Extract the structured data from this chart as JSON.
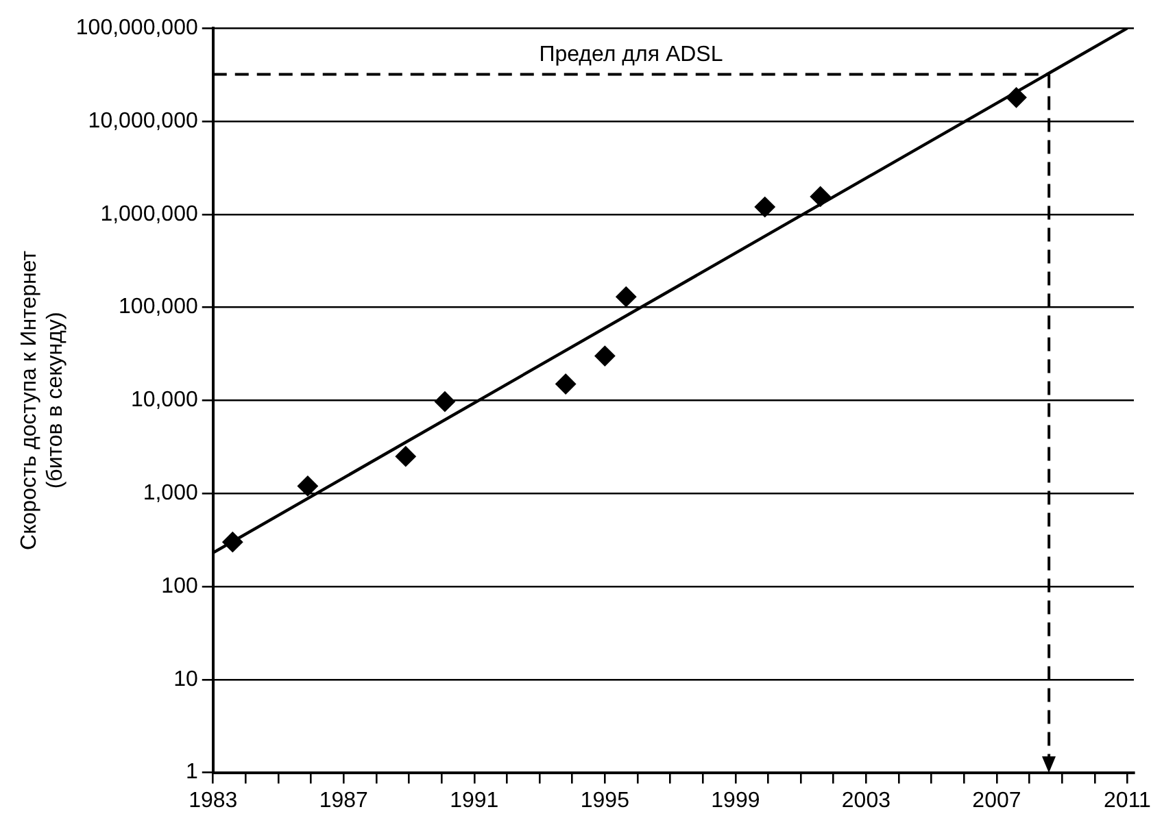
{
  "chart_data": {
    "type": "scatter",
    "ylabel": "Скорость доступа к Интернет\n(битов в секунду)",
    "x": [
      1983.6,
      1985.9,
      1988.9,
      1990.1,
      1993.8,
      1995.0,
      1995.65,
      1999.9,
      2001.6,
      2007.6
    ],
    "series": [
      {
        "color": "#000000",
        "marker": "diamond",
        "values": [
          300,
          1200,
          2500,
          9700,
          15000,
          30000,
          130000,
          1200000,
          1550000,
          18000000
        ]
      },
      {
        "type": "line",
        "color": "#000000",
        "marker": "none",
        "line_style": "solid",
        "x": [
          1983,
          2011
        ],
        "values": [
          230,
          100000000
        ]
      }
    ],
    "log": "y",
    "grid": "y",
    "legend": false,
    "xlim": [
      1983,
      2011.2
    ],
    "xticks": [
      1983,
      {
        "value": 1984,
        "label": null
      },
      {
        "value": 1985,
        "label": null
      },
      {
        "value": 1986,
        "label": null
      },
      1987,
      {
        "value": 1988,
        "label": null
      },
      {
        "value": 1989,
        "label": null
      },
      {
        "value": 1990,
        "label": null
      },
      1991,
      {
        "value": 1992,
        "label": null
      },
      {
        "value": 1993,
        "label": null
      },
      {
        "value": 1994,
        "label": null
      },
      1995,
      {
        "value": 1996,
        "label": null
      },
      {
        "value": 1997,
        "label": null
      },
      {
        "value": 1998,
        "label": null
      },
      1999,
      {
        "value": 2000,
        "label": null
      },
      {
        "value": 2001,
        "label": null
      },
      {
        "value": 2002,
        "label": null
      },
      2003,
      {
        "value": 2004,
        "label": null
      },
      {
        "value": 2005,
        "label": null
      },
      {
        "value": 2006,
        "label": null
      },
      2007,
      {
        "value": 2008,
        "label": null
      },
      {
        "value": 2009,
        "label": null
      },
      {
        "value": 2010,
        "label": null
      },
      2011
    ],
    "ylim": [
      1,
      100000000
    ],
    "yticks": [
      1,
      10,
      100,
      {
        "value": 1000,
        "label": "1,000"
      },
      {
        "value": 10000,
        "label": "10,000"
      },
      {
        "value": 100000,
        "label": "100,000"
      },
      {
        "value": 1000000,
        "label": "1,000,000"
      },
      {
        "value": 10000000,
        "label": "10,000,000"
      },
      {
        "value": 100000000,
        "label": "100,000,000"
      }
    ],
    "ref_lines": [
      {
        "axis": "y",
        "value": 32000000,
        "label": "Предел для ADSL",
        "line_style": "dashed",
        "color": "#000000"
      },
      {
        "axis": "x",
        "value": 2008.6,
        "line_style": "dashed",
        "color": "#000000"
      }
    ]
  }
}
